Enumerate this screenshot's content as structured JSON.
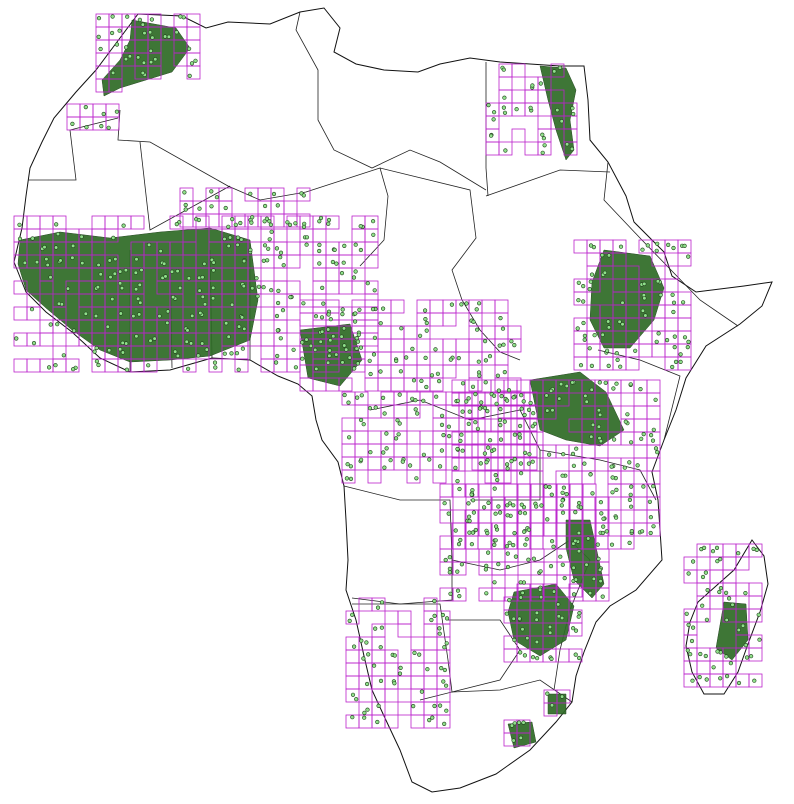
{
  "map": {
    "subject": "",
    "colors": {
      "background": "#ffffff",
      "land_fill": "#ffffff",
      "coastline": "#111111",
      "country_border": "#222222",
      "grid_cell": "#bb22cc",
      "point_fill": "#8fe08a",
      "point_stroke": "#1f3d1a",
      "dense_cluster": "#2e6b26"
    }
  }
}
